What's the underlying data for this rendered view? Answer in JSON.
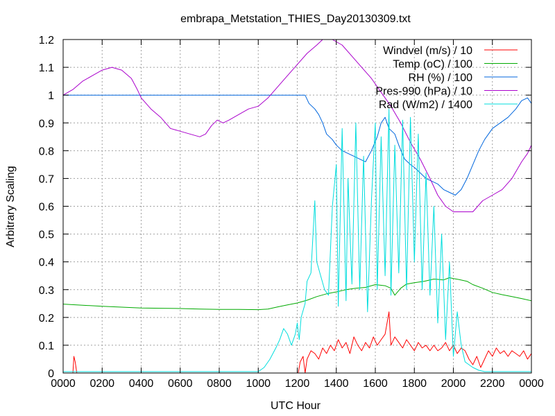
{
  "chart_data": {
    "type": "line",
    "title": "embrapa_Metstation_THIES_Day20130309.txt",
    "xlabel": "UTC Hour",
    "ylabel": "Arbitrary Scaling",
    "xlim": [
      0,
      24
    ],
    "ylim": [
      0,
      1.2
    ],
    "grid": true,
    "legend_position": "top-right",
    "x_tick_labels": [
      "0000",
      "0200",
      "0400",
      "0600",
      "0800",
      "1000",
      "1200",
      "1400",
      "1600",
      "1800",
      "2000",
      "2200",
      "0000"
    ],
    "y_tick_labels": [
      "0",
      "0.1",
      "0.2",
      "0.3",
      "0.4",
      "0.5",
      "0.6",
      "0.7",
      "0.8",
      "0.9",
      "1",
      "1.1",
      "1.2"
    ],
    "series": [
      {
        "name": "Windvel (m/s) / 10",
        "color": "#ff0000",
        "points": [
          [
            0.5,
            0.0
          ],
          [
            0.55,
            0.06
          ],
          [
            0.62,
            0.04
          ],
          [
            0.7,
            0.0
          ],
          [
            12.05,
            0.0
          ],
          [
            12.15,
            0.04
          ],
          [
            12.3,
            0.06
          ],
          [
            12.4,
            0.0
          ],
          [
            12.5,
            0.05
          ],
          [
            12.7,
            0.08
          ],
          [
            12.9,
            0.07
          ],
          [
            13.1,
            0.05
          ],
          [
            13.3,
            0.09
          ],
          [
            13.5,
            0.07
          ],
          [
            13.7,
            0.1
          ],
          [
            13.9,
            0.08
          ],
          [
            14.1,
            0.12
          ],
          [
            14.3,
            0.09
          ],
          [
            14.5,
            0.11
          ],
          [
            14.7,
            0.07
          ],
          [
            14.9,
            0.13
          ],
          [
            15.1,
            0.1
          ],
          [
            15.3,
            0.08
          ],
          [
            15.5,
            0.11
          ],
          [
            15.7,
            0.09
          ],
          [
            15.9,
            0.13
          ],
          [
            16.1,
            0.1
          ],
          [
            16.3,
            0.12
          ],
          [
            16.5,
            0.14
          ],
          [
            16.7,
            0.22
          ],
          [
            16.8,
            0.1
          ],
          [
            17.0,
            0.13
          ],
          [
            17.2,
            0.11
          ],
          [
            17.4,
            0.09
          ],
          [
            17.6,
            0.12
          ],
          [
            17.8,
            0.1
          ],
          [
            18.0,
            0.08
          ],
          [
            18.2,
            0.11
          ],
          [
            18.4,
            0.09
          ],
          [
            18.6,
            0.1
          ],
          [
            18.8,
            0.08
          ],
          [
            19.0,
            0.1
          ],
          [
            19.2,
            0.08
          ],
          [
            19.4,
            0.09
          ],
          [
            19.6,
            0.11
          ],
          [
            19.8,
            0.08
          ],
          [
            20.0,
            0.1
          ],
          [
            20.2,
            0.07
          ],
          [
            20.4,
            0.09
          ],
          [
            20.6,
            0.08
          ],
          [
            20.8,
            0.05
          ],
          [
            21.0,
            0.03
          ],
          [
            21.2,
            0.06
          ],
          [
            21.4,
            0.02
          ],
          [
            21.6,
            0.05
          ],
          [
            21.8,
            0.08
          ],
          [
            22.0,
            0.06
          ],
          [
            22.2,
            0.09
          ],
          [
            22.4,
            0.07
          ],
          [
            22.6,
            0.08
          ],
          [
            22.8,
            0.06
          ],
          [
            23.0,
            0.08
          ],
          [
            23.2,
            0.07
          ],
          [
            23.4,
            0.06
          ],
          [
            23.6,
            0.08
          ],
          [
            23.8,
            0.05
          ],
          [
            24.0,
            0.07
          ]
        ]
      },
      {
        "name": "Temp (oC) / 100",
        "color": "#00aa00",
        "points": [
          [
            0.0,
            0.248
          ],
          [
            1.0,
            0.244
          ],
          [
            2.0,
            0.24
          ],
          [
            3.0,
            0.237
          ],
          [
            4.0,
            0.234
          ],
          [
            5.0,
            0.233
          ],
          [
            6.0,
            0.232
          ],
          [
            7.0,
            0.23
          ],
          [
            8.0,
            0.229
          ],
          [
            9.0,
            0.229
          ],
          [
            10.0,
            0.228
          ],
          [
            10.5,
            0.23
          ],
          [
            11.0,
            0.238
          ],
          [
            11.5,
            0.245
          ],
          [
            12.0,
            0.252
          ],
          [
            12.5,
            0.262
          ],
          [
            13.0,
            0.275
          ],
          [
            13.5,
            0.285
          ],
          [
            14.0,
            0.292
          ],
          [
            14.5,
            0.3
          ],
          [
            15.0,
            0.305
          ],
          [
            15.5,
            0.308
          ],
          [
            16.0,
            0.318
          ],
          [
            16.5,
            0.314
          ],
          [
            16.8,
            0.305
          ],
          [
            17.0,
            0.28
          ],
          [
            17.3,
            0.305
          ],
          [
            17.6,
            0.32
          ],
          [
            18.0,
            0.325
          ],
          [
            18.5,
            0.33
          ],
          [
            19.0,
            0.338
          ],
          [
            19.5,
            0.335
          ],
          [
            19.8,
            0.343
          ],
          [
            20.0,
            0.34
          ],
          [
            20.3,
            0.336
          ],
          [
            20.7,
            0.33
          ],
          [
            21.0,
            0.318
          ],
          [
            21.5,
            0.305
          ],
          [
            22.0,
            0.29
          ],
          [
            22.5,
            0.282
          ],
          [
            23.0,
            0.275
          ],
          [
            23.5,
            0.268
          ],
          [
            24.0,
            0.26
          ]
        ]
      },
      {
        "name": "RH (%) / 100",
        "color": "#0066dd",
        "points": [
          [
            0.0,
            1.0
          ],
          [
            12.4,
            1.0
          ],
          [
            12.6,
            0.97
          ],
          [
            12.9,
            0.95
          ],
          [
            13.1,
            0.93
          ],
          [
            13.3,
            0.9
          ],
          [
            13.5,
            0.86
          ],
          [
            13.8,
            0.84
          ],
          [
            14.0,
            0.82
          ],
          [
            14.3,
            0.8
          ],
          [
            14.6,
            0.79
          ],
          [
            14.9,
            0.78
          ],
          [
            15.2,
            0.77
          ],
          [
            15.5,
            0.76
          ],
          [
            15.8,
            0.8
          ],
          [
            16.1,
            0.85
          ],
          [
            16.3,
            0.9
          ],
          [
            16.5,
            0.92
          ],
          [
            16.7,
            0.88
          ],
          [
            17.0,
            0.86
          ],
          [
            17.2,
            0.82
          ],
          [
            17.5,
            0.77
          ],
          [
            17.8,
            0.75
          ],
          [
            18.0,
            0.74
          ],
          [
            18.3,
            0.72
          ],
          [
            18.6,
            0.7
          ],
          [
            18.9,
            0.69
          ],
          [
            19.2,
            0.68
          ],
          [
            19.5,
            0.66
          ],
          [
            19.8,
            0.65
          ],
          [
            20.1,
            0.64
          ],
          [
            20.4,
            0.66
          ],
          [
            20.7,
            0.7
          ],
          [
            21.0,
            0.75
          ],
          [
            21.3,
            0.8
          ],
          [
            21.6,
            0.84
          ],
          [
            22.0,
            0.88
          ],
          [
            22.4,
            0.9
          ],
          [
            22.8,
            0.92
          ],
          [
            23.2,
            0.95
          ],
          [
            23.5,
            0.98
          ],
          [
            23.8,
            0.99
          ],
          [
            24.0,
            0.97
          ]
        ]
      },
      {
        "name": "Pres-990 (hPa) / 10",
        "color": "#aa00cc",
        "points": [
          [
            0.0,
            1.0
          ],
          [
            0.5,
            1.02
          ],
          [
            1.0,
            1.05
          ],
          [
            1.5,
            1.07
          ],
          [
            2.0,
            1.09
          ],
          [
            2.5,
            1.1
          ],
          [
            3.0,
            1.09
          ],
          [
            3.5,
            1.06
          ],
          [
            3.8,
            1.02
          ],
          [
            4.0,
            0.99
          ],
          [
            4.5,
            0.95
          ],
          [
            5.0,
            0.92
          ],
          [
            5.5,
            0.88
          ],
          [
            6.0,
            0.87
          ],
          [
            6.5,
            0.86
          ],
          [
            7.0,
            0.85
          ],
          [
            7.3,
            0.86
          ],
          [
            7.6,
            0.89
          ],
          [
            7.9,
            0.91
          ],
          [
            8.2,
            0.9
          ],
          [
            8.5,
            0.91
          ],
          [
            9.0,
            0.93
          ],
          [
            9.5,
            0.95
          ],
          [
            10.0,
            0.96
          ],
          [
            10.5,
            0.99
          ],
          [
            11.0,
            1.03
          ],
          [
            11.5,
            1.07
          ],
          [
            12.0,
            1.11
          ],
          [
            12.5,
            1.15
          ],
          [
            13.0,
            1.18
          ],
          [
            13.3,
            1.2
          ],
          [
            13.8,
            1.2
          ],
          [
            14.3,
            1.18
          ],
          [
            14.8,
            1.14
          ],
          [
            15.3,
            1.1
          ],
          [
            15.8,
            1.06
          ],
          [
            16.3,
            1.01
          ],
          [
            16.8,
            0.96
          ],
          [
            17.3,
            0.9
          ],
          [
            17.8,
            0.83
          ],
          [
            18.3,
            0.77
          ],
          [
            18.8,
            0.7
          ],
          [
            19.2,
            0.64
          ],
          [
            19.6,
            0.6
          ],
          [
            20.0,
            0.58
          ],
          [
            20.5,
            0.58
          ],
          [
            21.0,
            0.58
          ],
          [
            21.5,
            0.62
          ],
          [
            22.0,
            0.64
          ],
          [
            22.5,
            0.66
          ],
          [
            23.0,
            0.7
          ],
          [
            23.5,
            0.76
          ],
          [
            23.8,
            0.79
          ],
          [
            24.0,
            0.82
          ]
        ]
      },
      {
        "name": "Rad (W/m2) / 1400",
        "color": "#00dddd",
        "points": [
          [
            0.0,
            0.005
          ],
          [
            10.0,
            0.005
          ],
          [
            10.3,
            0.02
          ],
          [
            10.6,
            0.05
          ],
          [
            10.9,
            0.09
          ],
          [
            11.1,
            0.12
          ],
          [
            11.3,
            0.16
          ],
          [
            11.5,
            0.14
          ],
          [
            11.7,
            0.1
          ],
          [
            11.9,
            0.14
          ],
          [
            12.0,
            0.18
          ],
          [
            12.1,
            0.12
          ],
          [
            12.2,
            0.2
          ],
          [
            12.4,
            0.25
          ],
          [
            12.5,
            0.33
          ],
          [
            12.7,
            0.36
          ],
          [
            12.9,
            0.62
          ],
          [
            13.0,
            0.4
          ],
          [
            13.2,
            0.35
          ],
          [
            13.4,
            0.3
          ],
          [
            13.6,
            0.28
          ],
          [
            13.8,
            0.6
          ],
          [
            14.0,
            0.75
          ],
          [
            14.1,
            0.24
          ],
          [
            14.3,
            0.88
          ],
          [
            14.5,
            0.26
          ],
          [
            14.6,
            0.7
          ],
          [
            14.8,
            0.32
          ],
          [
            15.0,
            0.9
          ],
          [
            15.2,
            0.3
          ],
          [
            15.4,
            0.78
          ],
          [
            15.6,
            0.22
          ],
          [
            15.8,
            0.62
          ],
          [
            16.0,
            0.9
          ],
          [
            16.1,
            0.3
          ],
          [
            16.3,
            0.85
          ],
          [
            16.5,
            0.35
          ],
          [
            16.7,
            0.95
          ],
          [
            16.8,
            0.28
          ],
          [
            17.0,
            0.82
          ],
          [
            17.2,
            0.36
          ],
          [
            17.4,
            0.91
          ],
          [
            17.6,
            0.3
          ],
          [
            17.8,
            0.92
          ],
          [
            18.0,
            0.4
          ],
          [
            18.2,
            0.86
          ],
          [
            18.4,
            0.3
          ],
          [
            18.6,
            0.72
          ],
          [
            18.8,
            0.28
          ],
          [
            19.0,
            0.6
          ],
          [
            19.2,
            0.18
          ],
          [
            19.4,
            0.5
          ],
          [
            19.6,
            0.12
          ],
          [
            19.8,
            0.4
          ],
          [
            20.0,
            0.06
          ],
          [
            20.2,
            0.22
          ],
          [
            20.4,
            0.1
          ],
          [
            20.6,
            0.04
          ],
          [
            20.8,
            0.03
          ],
          [
            21.0,
            0.02
          ],
          [
            21.3,
            0.01
          ],
          [
            21.6,
            0.005
          ],
          [
            24.0,
            0.005
          ]
        ]
      }
    ]
  }
}
